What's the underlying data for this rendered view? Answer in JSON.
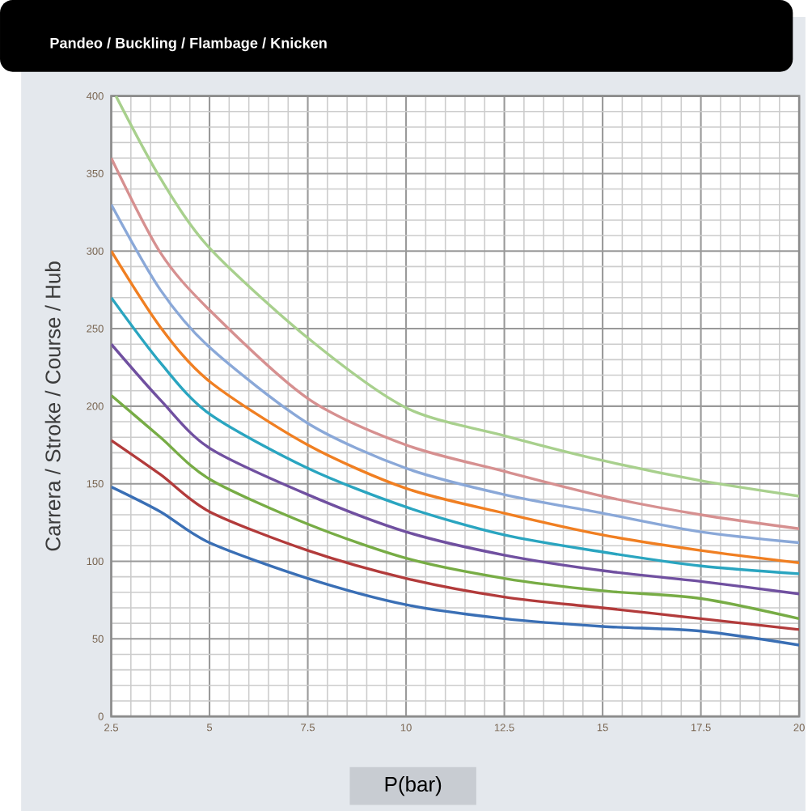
{
  "chart_data": {
    "type": "line",
    "title": "Pandeo / Buckling / Flambage / Knicken",
    "xlabel": "P(bar)",
    "ylabel": "Carrera / Stroke / Course / Hub",
    "xlim": [
      2.5,
      20
    ],
    "xticks": [
      2.5,
      5,
      7.5,
      10,
      12.5,
      15,
      17.5,
      20
    ],
    "ylim": [
      0,
      400
    ],
    "yticks": [
      0,
      50,
      100,
      150,
      200,
      250,
      300,
      350,
      400
    ],
    "grid": true,
    "series": [
      {
        "color": "#3a6fb5",
        "x": [
          2.5,
          3.75,
          5,
          7.5,
          10,
          12.5,
          15,
          17.5,
          20
        ],
        "values": [
          148,
          132,
          112,
          89,
          72,
          63,
          58,
          55,
          46
        ]
      },
      {
        "color": "#b23b3b",
        "x": [
          2.5,
          3.75,
          5,
          7.5,
          10,
          12.5,
          15,
          17.5,
          20
        ],
        "values": [
          178,
          156,
          132,
          107,
          89,
          77,
          70,
          63,
          56
        ]
      },
      {
        "color": "#77ac45",
        "x": [
          2.5,
          3.75,
          5,
          7.5,
          10,
          12.5,
          15,
          17.5,
          20
        ],
        "values": [
          207,
          180,
          153,
          124,
          102,
          89,
          81,
          76,
          63
        ]
      },
      {
        "color": "#7050a0",
        "x": [
          2.5,
          3.75,
          5,
          7.5,
          10,
          12.5,
          15,
          17.5,
          20
        ],
        "values": [
          240,
          204,
          173,
          143,
          119,
          104,
          94,
          87,
          79
        ]
      },
      {
        "color": "#2aa5c0",
        "x": [
          2.5,
          3.75,
          5,
          7.5,
          10,
          12.5,
          15,
          17.5,
          20
        ],
        "values": [
          270,
          228,
          195,
          160,
          135,
          117,
          106,
          97,
          92
        ]
      },
      {
        "color": "#f07f22",
        "x": [
          2.5,
          3.75,
          5,
          7.5,
          10,
          12.5,
          15,
          17.5,
          20
        ],
        "values": [
          300,
          251,
          216,
          175,
          147,
          131,
          117,
          107,
          99
        ]
      },
      {
        "color": "#8aa8d8",
        "x": [
          2.5,
          3.75,
          5,
          7.5,
          10,
          12.5,
          15,
          17.5,
          20
        ],
        "values": [
          330,
          275,
          238,
          189,
          160,
          143,
          131,
          119,
          112
        ]
      },
      {
        "color": "#d69090",
        "x": [
          2.5,
          3.75,
          5,
          7.5,
          10,
          12.5,
          15,
          17.5,
          20
        ],
        "values": [
          360,
          299,
          262,
          205,
          175,
          158,
          142,
          130,
          121
        ]
      },
      {
        "color": "#a8d08d",
        "x": [
          2.62,
          3.75,
          5,
          7.5,
          10,
          12.5,
          15,
          17.5,
          20
        ],
        "values": [
          400,
          347,
          302,
          244,
          199,
          181,
          165,
          152,
          142
        ]
      }
    ]
  }
}
